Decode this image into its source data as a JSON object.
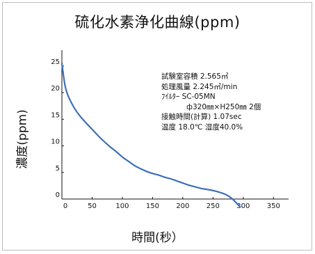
{
  "chart_data": {
    "type": "line",
    "title": "硫化水素浄化曲線(ppm)",
    "xlabel": "時間(秒）",
    "ylabel": "濃度(ppm)",
    "xlim": [
      0,
      375
    ],
    "ylim": [
      0,
      28
    ],
    "xticks": [
      "0",
      "50",
      "100",
      "150",
      "200",
      "250",
      "300",
      "350"
    ],
    "yticks": [
      "0",
      "5",
      "10",
      "15",
      "20",
      "25"
    ],
    "grid": false,
    "line_color": "#3d6fb6",
    "series": [
      {
        "x": [
          0,
          5,
          10,
          20,
          30,
          40,
          50,
          60,
          70,
          80,
          90,
          100,
          110,
          120,
          130,
          140,
          150,
          160,
          170,
          180,
          190,
          200,
          210,
          220,
          230,
          240,
          250,
          260,
          270,
          275,
          280,
          285,
          290,
          295
        ],
        "values": [
          25.5,
          21.5,
          19.5,
          17.2,
          15.6,
          14.3,
          13.1,
          11.9,
          10.8,
          9.8,
          8.9,
          7.9,
          7.1,
          6.3,
          5.7,
          5.2,
          4.8,
          4.5,
          4.1,
          3.8,
          3.4,
          3.0,
          2.6,
          2.3,
          2.0,
          1.8,
          1.6,
          1.3,
          0.9,
          0.6,
          0.2,
          -0.3,
          -0.9,
          -1.5
        ]
      }
    ],
    "annotations": [
      "試験室容積  2.565㎥",
      "処理風量  2.245㎥/min",
      "ﾌｲﾙﾀｰ   SC-05MN",
      "ф320㎜×H250㎜  2個",
      "接触時間(計算)  1.07sec",
      "温度  18.0℃    湿度40.0%"
    ]
  }
}
